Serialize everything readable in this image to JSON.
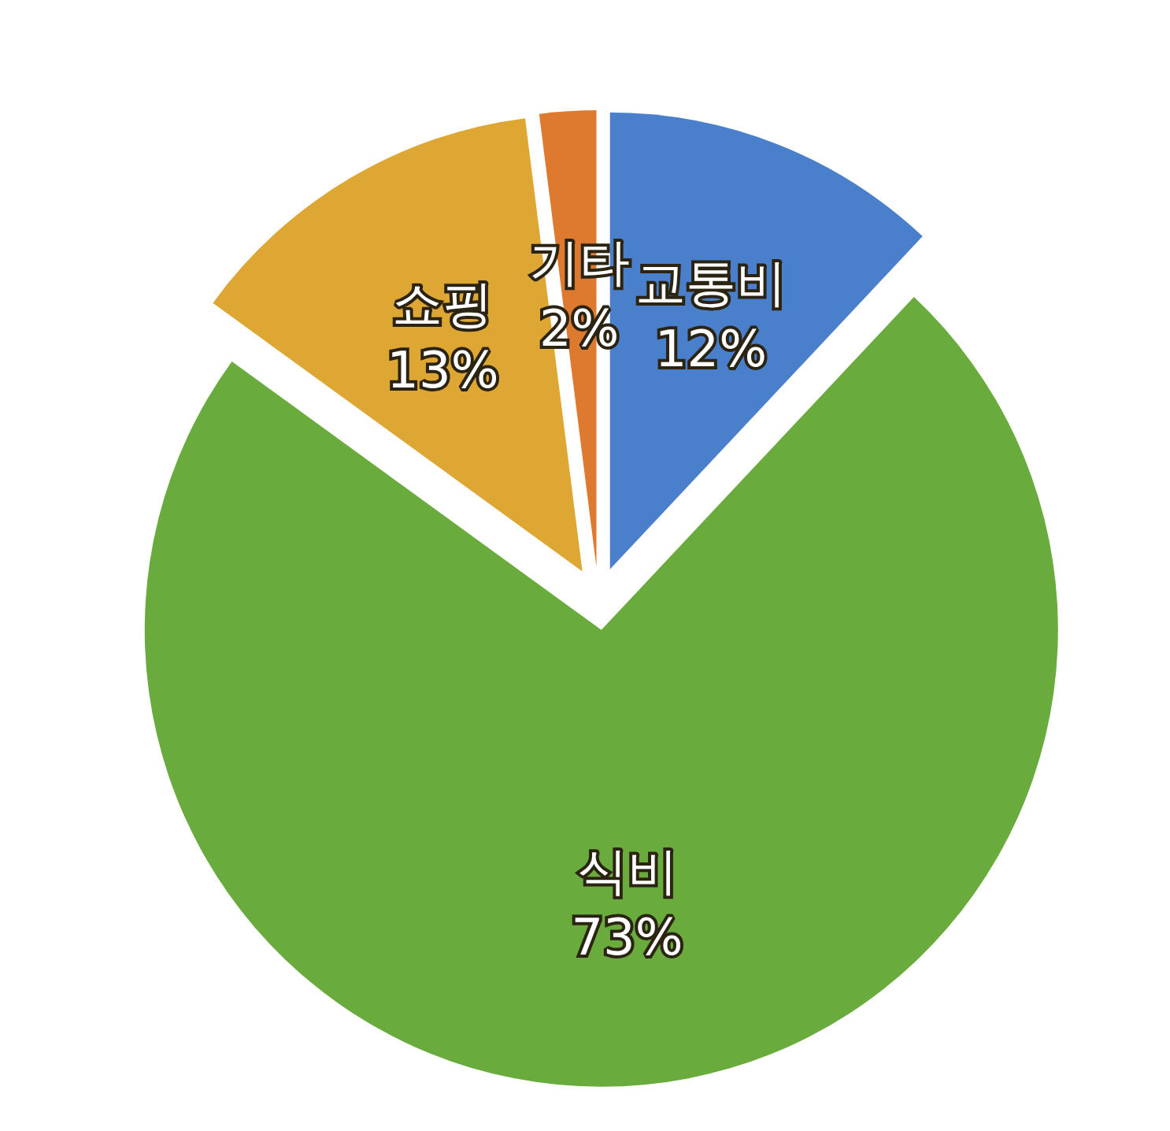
{
  "chart_data": {
    "type": "pie",
    "categories": [
      "교통비",
      "식비",
      "쇼핑",
      "기타"
    ],
    "values": [
      12,
      73,
      13,
      2
    ],
    "colors": [
      "#4a7fcc",
      "#69ab3c",
      "#dea632",
      "#de7a30"
    ],
    "value_labels": [
      "12%",
      "73%",
      "13%",
      "2%"
    ],
    "legend": false
  }
}
